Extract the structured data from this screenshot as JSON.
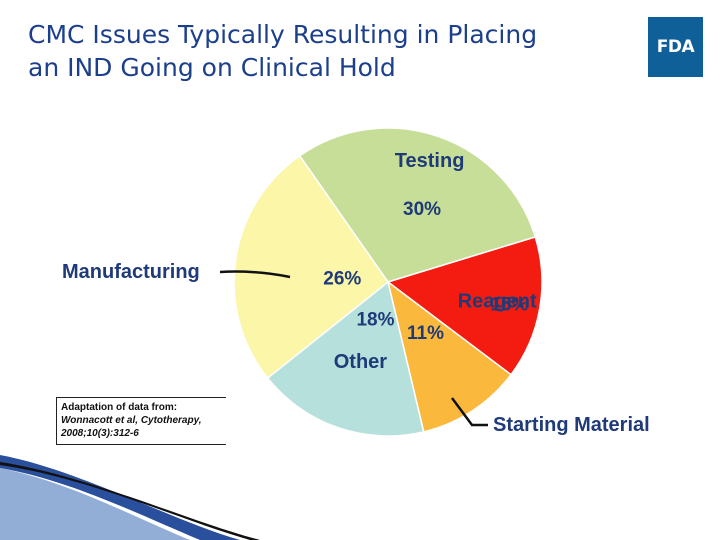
{
  "slide": {
    "title": "CMC Issues Typically Resulting in Placing\nan IND Going on Clinical Hold",
    "logo_text": "FDA",
    "source_head": "Adaptation of data from:",
    "source_ref": "Wonnacott et al, Cytotherapy, 2008;10(3):312-6"
  },
  "colors": {
    "title": "#1c3f8c",
    "logo_bg": "#0f5f99",
    "label_text": "#1f3a78"
  },
  "chart_data": {
    "type": "pie",
    "title": "",
    "slices": [
      {
        "name": "Testing",
        "value": 30,
        "label": "30%",
        "color": "#c6de98"
      },
      {
        "name": "Reagent",
        "value": 15,
        "label": "15%",
        "color": "#f41c10"
      },
      {
        "name": "Starting Material",
        "value": 11,
        "label": "11%",
        "color": "#fab83c"
      },
      {
        "name": "Other",
        "value": 18,
        "label": "18%",
        "color": "#b6e0dc"
      },
      {
        "name": "Manufacturing",
        "value": 26,
        "label": "26%",
        "color": "#fbf6a8"
      }
    ]
  }
}
